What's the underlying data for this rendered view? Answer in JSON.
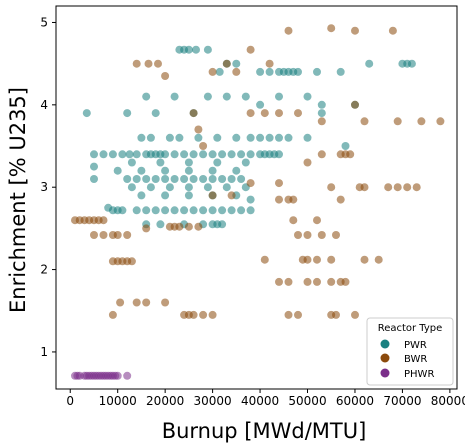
{
  "chart_data": {
    "type": "scatter",
    "title": "",
    "xlabel": "Burnup [MWd/MTU]",
    "ylabel": "Enrichment [% U235]",
    "xlim": [
      -3000,
      81500
    ],
    "ylim": [
      0.55,
      5.2
    ],
    "xticks": [
      0,
      10000,
      20000,
      30000,
      40000,
      50000,
      60000,
      70000,
      80000
    ],
    "xtick_labels": [
      "0",
      "10000",
      "20000",
      "30000",
      "40000",
      "50000",
      "60000",
      "70000",
      "80000"
    ],
    "yticks": [
      1,
      2,
      3,
      4,
      5
    ],
    "ytick_labels": [
      "1",
      "2",
      "3",
      "4",
      "5"
    ],
    "grid": false,
    "legend": {
      "title": "Reactor Type",
      "placement": "lower-right",
      "entries": [
        "PWR",
        "BWR",
        "PHWR"
      ]
    },
    "series": [
      {
        "name": "PWR",
        "color": "#1a8080",
        "points": [
          [
            3500,
            3.9
          ],
          [
            12000,
            3.9
          ],
          [
            16000,
            4.1
          ],
          [
            18000,
            3.9
          ],
          [
            22000,
            4.1
          ],
          [
            26000,
            3.9
          ],
          [
            29000,
            4.1
          ],
          [
            33000,
            4.1
          ],
          [
            37000,
            4.1
          ],
          [
            40000,
            4.0
          ],
          [
            44000,
            4.1
          ],
          [
            50000,
            4.1
          ],
          [
            53000,
            4.0
          ],
          [
            23000,
            4.67
          ],
          [
            24000,
            4.67
          ],
          [
            25000,
            4.67
          ],
          [
            26500,
            4.67
          ],
          [
            29000,
            4.67
          ],
          [
            31500,
            4.4
          ],
          [
            33000,
            4.5
          ],
          [
            35000,
            4.5
          ],
          [
            40000,
            4.4
          ],
          [
            42000,
            4.4
          ],
          [
            44000,
            4.4
          ],
          [
            45000,
            4.4
          ],
          [
            46000,
            4.4
          ],
          [
            47000,
            4.4
          ],
          [
            48000,
            4.4
          ],
          [
            52000,
            4.4
          ],
          [
            57000,
            4.4
          ],
          [
            63000,
            4.5
          ],
          [
            70000,
            4.5
          ],
          [
            71000,
            4.5
          ],
          [
            72000,
            4.5
          ],
          [
            5000,
            3.4
          ],
          [
            7000,
            3.4
          ],
          [
            9000,
            3.4
          ],
          [
            11000,
            3.4
          ],
          [
            12500,
            3.4
          ],
          [
            14000,
            3.4
          ],
          [
            16000,
            3.4
          ],
          [
            17000,
            3.4
          ],
          [
            18000,
            3.4
          ],
          [
            19000,
            3.4
          ],
          [
            20000,
            3.4
          ],
          [
            22000,
            3.4
          ],
          [
            24000,
            3.4
          ],
          [
            26000,
            3.4
          ],
          [
            28000,
            3.4
          ],
          [
            30000,
            3.4
          ],
          [
            32000,
            3.4
          ],
          [
            34000,
            3.4
          ],
          [
            36000,
            3.4
          ],
          [
            38000,
            3.4
          ],
          [
            40000,
            3.4
          ],
          [
            41000,
            3.4
          ],
          [
            42000,
            3.4
          ],
          [
            43000,
            3.4
          ],
          [
            44000,
            3.4
          ],
          [
            15000,
            3.6
          ],
          [
            17000,
            3.6
          ],
          [
            21000,
            3.6
          ],
          [
            23000,
            3.6
          ],
          [
            27000,
            3.6
          ],
          [
            31000,
            3.6
          ],
          [
            35000,
            3.6
          ],
          [
            38000,
            3.6
          ],
          [
            40000,
            3.6
          ],
          [
            42000,
            3.6
          ],
          [
            44000,
            3.6
          ],
          [
            46000,
            3.6
          ],
          [
            13000,
            3.3
          ],
          [
            19000,
            3.3
          ],
          [
            25000,
            3.3
          ],
          [
            31000,
            3.3
          ],
          [
            37000,
            3.3
          ],
          [
            5000,
            3.25
          ],
          [
            10000,
            3.2
          ],
          [
            15000,
            3.2
          ],
          [
            20000,
            3.2
          ],
          [
            25000,
            3.2
          ],
          [
            30000,
            3.2
          ],
          [
            35000,
            3.2
          ],
          [
            12000,
            3.1
          ],
          [
            14000,
            3.1
          ],
          [
            16000,
            3.1
          ],
          [
            18000,
            3.1
          ],
          [
            20000,
            3.1
          ],
          [
            22000,
            3.1
          ],
          [
            24000,
            3.1
          ],
          [
            26000,
            3.1
          ],
          [
            28000,
            3.1
          ],
          [
            30000,
            3.1
          ],
          [
            32000,
            3.1
          ],
          [
            34000,
            3.1
          ],
          [
            36000,
            3.1
          ],
          [
            5000,
            3.1
          ],
          [
            13000,
            3.0
          ],
          [
            17000,
            3.0
          ],
          [
            21000,
            3.0
          ],
          [
            25000,
            3.0
          ],
          [
            29000,
            3.0
          ],
          [
            33000,
            3.0
          ],
          [
            37000,
            3.0
          ],
          [
            15000,
            2.9
          ],
          [
            20000,
            2.9
          ],
          [
            25000,
            2.9
          ],
          [
            30000,
            2.9
          ],
          [
            35000,
            2.9
          ],
          [
            38000,
            2.85
          ],
          [
            8000,
            2.75
          ],
          [
            9000,
            2.72
          ],
          [
            10000,
            2.72
          ],
          [
            11000,
            2.72
          ],
          [
            14000,
            2.72
          ],
          [
            16000,
            2.72
          ],
          [
            18000,
            2.72
          ],
          [
            20000,
            2.72
          ],
          [
            22000,
            2.72
          ],
          [
            24000,
            2.72
          ],
          [
            26000,
            2.72
          ],
          [
            28000,
            2.72
          ],
          [
            30000,
            2.72
          ],
          [
            32000,
            2.72
          ],
          [
            34000,
            2.72
          ],
          [
            36000,
            2.72
          ],
          [
            38000,
            2.72
          ],
          [
            16000,
            2.55
          ],
          [
            19000,
            2.55
          ],
          [
            24000,
            2.55
          ],
          [
            28000,
            2.55
          ],
          [
            30000,
            2.55
          ],
          [
            31000,
            2.55
          ],
          [
            32000,
            2.55
          ],
          [
            60000,
            4.0
          ],
          [
            58000,
            3.5
          ],
          [
            50000,
            3.6
          ],
          [
            53000,
            3.9
          ]
        ]
      },
      {
        "name": "BWR",
        "color": "#8b4a0c",
        "points": [
          [
            1000,
            2.6
          ],
          [
            2000,
            2.6
          ],
          [
            3000,
            2.6
          ],
          [
            4000,
            2.6
          ],
          [
            5000,
            2.6
          ],
          [
            6000,
            2.6
          ],
          [
            7000,
            2.6
          ],
          [
            5000,
            2.42
          ],
          [
            7000,
            2.42
          ],
          [
            9000,
            2.42
          ],
          [
            10000,
            2.42
          ],
          [
            12000,
            2.42
          ],
          [
            9000,
            2.1
          ],
          [
            10000,
            2.1
          ],
          [
            11000,
            2.1
          ],
          [
            12000,
            2.1
          ],
          [
            13000,
            2.1
          ],
          [
            10500,
            1.6
          ],
          [
            14000,
            1.6
          ],
          [
            16000,
            1.6
          ],
          [
            20000,
            1.6
          ],
          [
            24000,
            1.45
          ],
          [
            25000,
            1.45
          ],
          [
            26000,
            1.45
          ],
          [
            28000,
            1.45
          ],
          [
            30000,
            1.45
          ],
          [
            9000,
            1.45
          ],
          [
            14000,
            4.5
          ],
          [
            16500,
            4.5
          ],
          [
            18500,
            4.5
          ],
          [
            26000,
            3.9
          ],
          [
            38000,
            3.9
          ],
          [
            41000,
            3.9
          ],
          [
            44000,
            3.9
          ],
          [
            48000,
            3.9
          ],
          [
            33000,
            4.5
          ],
          [
            46000,
            4.9
          ],
          [
            55000,
            4.93
          ],
          [
            60000,
            4.9
          ],
          [
            68000,
            4.9
          ],
          [
            38000,
            4.67
          ],
          [
            42000,
            4.5
          ],
          [
            60000,
            4.0
          ],
          [
            53000,
            3.8
          ],
          [
            62000,
            3.8
          ],
          [
            69000,
            3.8
          ],
          [
            74000,
            3.8
          ],
          [
            78000,
            3.8
          ],
          [
            53000,
            3.4
          ],
          [
            57000,
            3.4
          ],
          [
            58000,
            3.4
          ],
          [
            59000,
            3.4
          ],
          [
            50000,
            3.3
          ],
          [
            55000,
            3.0
          ],
          [
            61000,
            3.0
          ],
          [
            62000,
            3.0
          ],
          [
            67000,
            3.0
          ],
          [
            69000,
            3.0
          ],
          [
            71000,
            3.0
          ],
          [
            73000,
            3.0
          ],
          [
            44000,
            3.05
          ],
          [
            46000,
            2.85
          ],
          [
            47000,
            2.85
          ],
          [
            44000,
            2.85
          ],
          [
            57000,
            2.85
          ],
          [
            30000,
            2.9
          ],
          [
            34000,
            2.9
          ],
          [
            38000,
            3.05
          ],
          [
            16000,
            2.5
          ],
          [
            21000,
            2.52
          ],
          [
            22000,
            2.52
          ],
          [
            23000,
            2.52
          ],
          [
            25000,
            2.52
          ],
          [
            27000,
            2.52
          ],
          [
            47000,
            2.6
          ],
          [
            52000,
            2.6
          ],
          [
            48000,
            2.42
          ],
          [
            50000,
            2.42
          ],
          [
            53000,
            2.42
          ],
          [
            56000,
            2.42
          ],
          [
            49000,
            2.12
          ],
          [
            50000,
            2.12
          ],
          [
            52000,
            2.12
          ],
          [
            55000,
            2.12
          ],
          [
            62000,
            2.12
          ],
          [
            65000,
            2.12
          ],
          [
            41000,
            2.12
          ],
          [
            44000,
            1.85
          ],
          [
            46000,
            1.85
          ],
          [
            50000,
            1.85
          ],
          [
            52000,
            1.85
          ],
          [
            55000,
            1.85
          ],
          [
            57000,
            1.85
          ],
          [
            58000,
            1.85
          ],
          [
            46000,
            1.45
          ],
          [
            48000,
            1.45
          ],
          [
            55000,
            1.45
          ],
          [
            56000,
            1.45
          ],
          [
            60000,
            1.45
          ],
          [
            20000,
            4.35
          ],
          [
            30000,
            4.4
          ],
          [
            35000,
            4.4
          ],
          [
            28000,
            3.5
          ],
          [
            27000,
            3.7
          ]
        ]
      },
      {
        "name": "PHWR",
        "color": "#7b2f8a",
        "points": [
          [
            1000,
            0.71
          ],
          [
            1500,
            0.71
          ],
          [
            2000,
            0.71
          ],
          [
            3000,
            0.71
          ],
          [
            3500,
            0.71
          ],
          [
            4000,
            0.71
          ],
          [
            4500,
            0.71
          ],
          [
            5000,
            0.71
          ],
          [
            5500,
            0.71
          ],
          [
            6000,
            0.71
          ],
          [
            6500,
            0.71
          ],
          [
            7000,
            0.71
          ],
          [
            7500,
            0.71
          ],
          [
            8000,
            0.71
          ],
          [
            8500,
            0.71
          ],
          [
            9000,
            0.71
          ],
          [
            9500,
            0.71
          ],
          [
            10000,
            0.71
          ],
          [
            12000,
            0.71
          ]
        ]
      }
    ]
  }
}
